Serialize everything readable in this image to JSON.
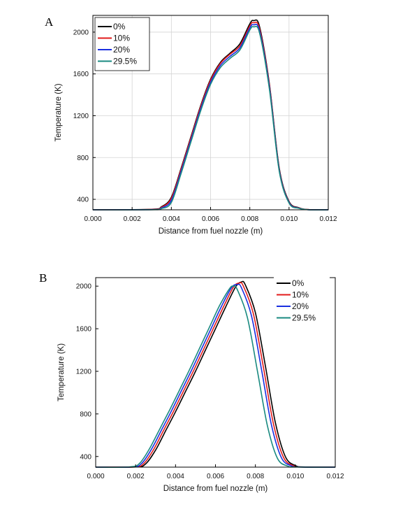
{
  "chart_data": [
    {
      "panel": "A",
      "type": "line",
      "xlabel": "Distance from fuel nozzle (m)",
      "ylabel": "Temperature (K)",
      "xlim": [
        0.0,
        0.012
      ],
      "ylim": [
        300,
        2160
      ],
      "xticks": [
        "0.000",
        "0.002",
        "0.004",
        "0.006",
        "0.008",
        "0.010",
        "0.012"
      ],
      "yticks": [
        "400",
        "800",
        "1200",
        "1600",
        "2000"
      ],
      "grid": true,
      "legend": "top-left",
      "series": [
        {
          "name": "0%",
          "color": "#000000",
          "x": [
            0.0,
            0.003,
            0.0035,
            0.004,
            0.0045,
            0.005,
            0.0055,
            0.006,
            0.0065,
            0.007,
            0.0075,
            0.008,
            0.0082,
            0.0085,
            0.009,
            0.0095,
            0.01,
            0.0105,
            0.011,
            0.012
          ],
          "values": [
            300,
            305,
            330,
            420,
            700,
            1000,
            1300,
            1550,
            1710,
            1800,
            1890,
            2080,
            2110,
            2050,
            1500,
            700,
            380,
            320,
            302,
            300
          ]
        },
        {
          "name": "10%",
          "color": "#e21b1b",
          "x": [
            0.0,
            0.003,
            0.0035,
            0.004,
            0.0045,
            0.005,
            0.0055,
            0.006,
            0.0065,
            0.007,
            0.0075,
            0.008,
            0.0082,
            0.0085,
            0.009,
            0.0095,
            0.01,
            0.0105,
            0.011,
            0.012
          ],
          "values": [
            300,
            304,
            325,
            410,
            690,
            990,
            1290,
            1540,
            1700,
            1790,
            1870,
            2060,
            2090,
            2030,
            1490,
            690,
            375,
            318,
            302,
            300
          ]
        },
        {
          "name": "20%",
          "color": "#1a2fe0",
          "x": [
            0.0,
            0.003,
            0.0035,
            0.004,
            0.0045,
            0.005,
            0.0055,
            0.006,
            0.0065,
            0.007,
            0.0075,
            0.008,
            0.0082,
            0.0085,
            0.009,
            0.0095,
            0.01,
            0.0105,
            0.011,
            0.012
          ],
          "values": [
            300,
            302,
            318,
            390,
            670,
            970,
            1270,
            1520,
            1680,
            1770,
            1850,
            2040,
            2070,
            2010,
            1470,
            680,
            370,
            316,
            301,
            300
          ]
        },
        {
          "name": "29.5%",
          "color": "#1a8a80",
          "x": [
            0.0,
            0.003,
            0.0035,
            0.004,
            0.0045,
            0.005,
            0.0055,
            0.006,
            0.0065,
            0.007,
            0.0075,
            0.008,
            0.0082,
            0.0085,
            0.009,
            0.0095,
            0.01,
            0.0105,
            0.011,
            0.012
          ],
          "values": [
            300,
            301,
            312,
            370,
            650,
            950,
            1250,
            1500,
            1660,
            1750,
            1830,
            2020,
            2050,
            1990,
            1450,
            670,
            365,
            314,
            301,
            300
          ]
        }
      ]
    },
    {
      "panel": "B",
      "type": "line",
      "xlabel": "Distance from fuel nozzle (m)",
      "ylabel": "Temperature (K)",
      "xlim": [
        0.0,
        0.012
      ],
      "ylim": [
        300,
        2080
      ],
      "xticks": [
        "0.000",
        "0.002",
        "0.004",
        "0.006",
        "0.008",
        "0.010",
        "0.012"
      ],
      "yticks": [
        "400",
        "800",
        "1200",
        "1600",
        "2000"
      ],
      "grid": false,
      "legend": "top-right",
      "series": [
        {
          "name": "0%",
          "color": "#000000",
          "x": [
            0.0,
            0.002,
            0.0025,
            0.003,
            0.0035,
            0.004,
            0.0045,
            0.005,
            0.0055,
            0.006,
            0.0065,
            0.007,
            0.0073,
            0.0075,
            0.008,
            0.0085,
            0.009,
            0.0095,
            0.01,
            0.0105,
            0.012
          ],
          "values": [
            300,
            302,
            330,
            460,
            640,
            820,
            1010,
            1200,
            1400,
            1600,
            1800,
            1990,
            2040,
            2010,
            1750,
            1250,
            720,
            400,
            315,
            301,
            300
          ]
        },
        {
          "name": "10%",
          "color": "#e21b1b",
          "x": [
            0.0,
            0.0019,
            0.0024,
            0.0029,
            0.0034,
            0.0039,
            0.0044,
            0.0049,
            0.0054,
            0.0059,
            0.0064,
            0.0069,
            0.0072,
            0.0074,
            0.0079,
            0.0084,
            0.0089,
            0.0094,
            0.0099,
            0.0104,
            0.012
          ],
          "values": [
            300,
            302,
            332,
            465,
            645,
            825,
            1015,
            1205,
            1405,
            1605,
            1805,
            1990,
            2030,
            2000,
            1740,
            1240,
            710,
            395,
            313,
            301,
            300
          ]
        },
        {
          "name": "20%",
          "color": "#1a2fe0",
          "x": [
            0.0,
            0.0018,
            0.0023,
            0.0028,
            0.0033,
            0.0038,
            0.0043,
            0.0048,
            0.0053,
            0.0058,
            0.0063,
            0.0068,
            0.0071,
            0.0073,
            0.0078,
            0.0083,
            0.0088,
            0.0093,
            0.0098,
            0.0103,
            0.012
          ],
          "values": [
            300,
            302,
            334,
            470,
            650,
            830,
            1020,
            1210,
            1410,
            1610,
            1810,
            1985,
            2015,
            1985,
            1725,
            1225,
            700,
            390,
            312,
            301,
            300
          ]
        },
        {
          "name": "29.5%",
          "color": "#1a8a80",
          "x": [
            0.0,
            0.0017,
            0.0022,
            0.0027,
            0.0032,
            0.0037,
            0.0042,
            0.0047,
            0.0052,
            0.0057,
            0.0062,
            0.0067,
            0.0069,
            0.0071,
            0.0076,
            0.0081,
            0.0086,
            0.0091,
            0.0096,
            0.0101,
            0.012
          ],
          "values": [
            300,
            302,
            336,
            475,
            655,
            835,
            1025,
            1215,
            1415,
            1615,
            1815,
            1975,
            2000,
            1965,
            1705,
            1205,
            690,
            385,
            311,
            301,
            300
          ]
        }
      ]
    }
  ]
}
